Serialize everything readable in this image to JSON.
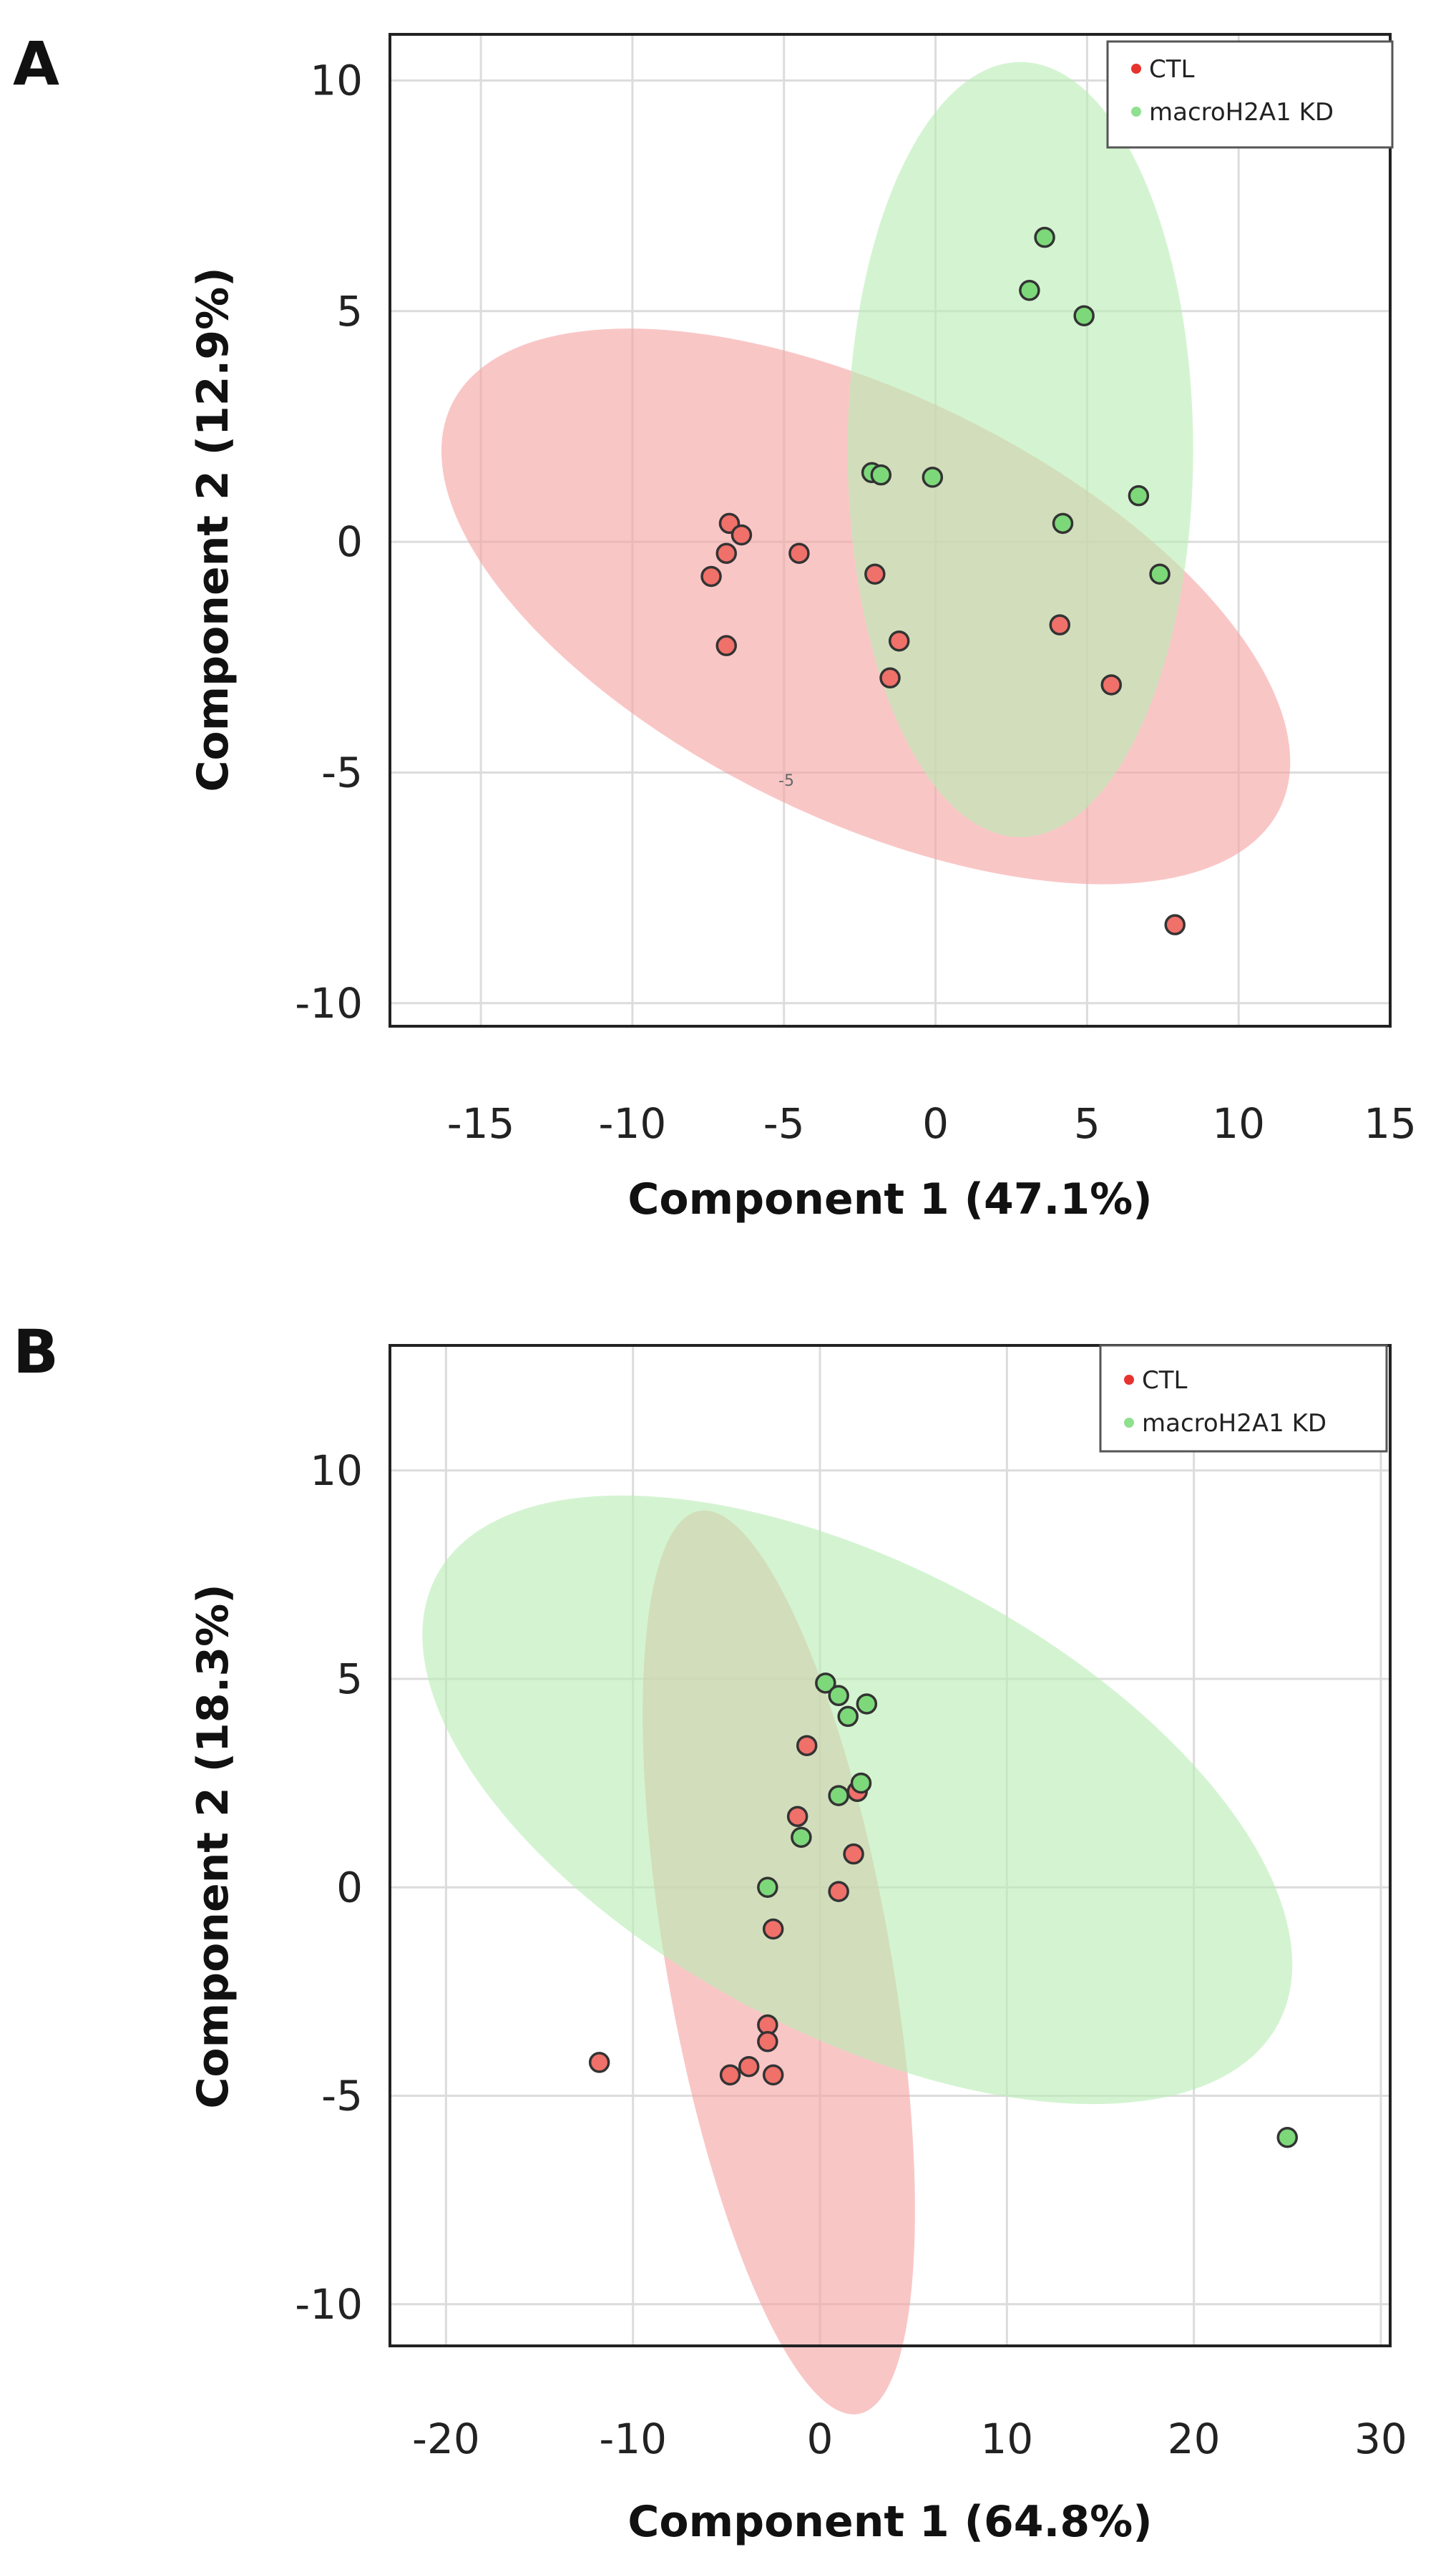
{
  "chart_data": [
    {
      "type": "scatter",
      "panel_label": "A",
      "xlabel": "Component 1 (47.1%)",
      "ylabel": "Component 2 (12.9%)",
      "xlim": [
        -18,
        15
      ],
      "ylim": [
        -10.5,
        11
      ],
      "xticks": [
        -15,
        -10,
        -5,
        0,
        5,
        10,
        15
      ],
      "yticks": [
        10,
        5,
        0,
        -5,
        -10
      ],
      "ytick_labels": [
        "10",
        "5",
        "0",
        "-5",
        "-10"
      ],
      "stray_mark": "-5",
      "legend": {
        "position": "top-right",
        "entries": [
          {
            "name": "CTL",
            "color": "#e8322e"
          },
          {
            "name": "macroH2A1 KD",
            "color": "#8fe08f"
          }
        ]
      },
      "series": [
        {
          "name": "CTL",
          "point_color": "#f0706a",
          "ellipse_color": "#f5a3a3",
          "points": [
            [
              -6.8,
              0.4
            ],
            [
              -6.4,
              0.15
            ],
            [
              -6.9,
              -0.25
            ],
            [
              -7.4,
              -0.75
            ],
            [
              -6.9,
              -2.25
            ],
            [
              -4.5,
              -0.25
            ],
            [
              -2.0,
              -0.7
            ],
            [
              -1.2,
              -2.15
            ],
            [
              -1.5,
              -2.95
            ],
            [
              4.1,
              -1.8
            ],
            [
              5.8,
              -3.1
            ],
            [
              7.9,
              -8.3
            ]
          ],
          "ellipse": {
            "cx": -2.3,
            "cy": -1.4,
            "rx": 15.2,
            "ry": 4.6,
            "angle_deg": 26
          }
        },
        {
          "name": "macroH2A1 KD",
          "point_color": "#7dd87a",
          "ellipse_color": "#b9edb4",
          "points": [
            [
              3.6,
              6.6
            ],
            [
              3.1,
              5.45
            ],
            [
              4.9,
              4.9
            ],
            [
              -2.1,
              1.5
            ],
            [
              -1.8,
              1.45
            ],
            [
              -0.1,
              1.4
            ],
            [
              6.7,
              1.0
            ],
            [
              4.2,
              0.4
            ],
            [
              7.4,
              -0.7
            ]
          ],
          "ellipse": {
            "cx": 2.8,
            "cy": 2.0,
            "rx": 5.7,
            "ry": 8.4,
            "angle_deg": 0
          }
        }
      ]
    },
    {
      "type": "scatter",
      "panel_label": "B",
      "xlabel": "Component 1 (64.8%)",
      "ylabel": "Component 2 (18.3%)",
      "xlim": [
        -23,
        30.5
      ],
      "ylim": [
        -11,
        13
      ],
      "xticks": [
        -20,
        -10,
        0,
        10,
        20,
        30
      ],
      "yticks": [
        10,
        5,
        0,
        -5,
        -10
      ],
      "ytick_labels": [
        "10",
        "5",
        "0",
        "-5",
        "-10"
      ],
      "legend": {
        "position": "top-right",
        "entries": [
          {
            "name": "CTL",
            "color": "#e8322e"
          },
          {
            "name": "macroH2A1 KD",
            "color": "#8fe08f"
          }
        ]
      },
      "series": [
        {
          "name": "CTL",
          "point_color": "#f0706a",
          "ellipse_color": "#f5a3a3",
          "points": [
            [
              -0.7,
              3.4
            ],
            [
              -1.2,
              1.7
            ],
            [
              2.0,
              2.3
            ],
            [
              1.8,
              0.8
            ],
            [
              1.0,
              -0.1
            ],
            [
              -2.5,
              -1.0
            ],
            [
              -2.8,
              -3.3
            ],
            [
              -2.8,
              -3.7
            ],
            [
              -3.8,
              -4.3
            ],
            [
              -4.8,
              -4.5
            ],
            [
              -2.5,
              -4.5
            ],
            [
              -11.8,
              -4.2
            ]
          ],
          "ellipse": {
            "cx": -2.2,
            "cy": -1.8,
            "rx": 6.0,
            "ry": 11.0,
            "angle_deg": -10
          }
        },
        {
          "name": "macroH2A1 KD",
          "point_color": "#7dd87a",
          "ellipse_color": "#b9edb4",
          "points": [
            [
              0.3,
              4.9
            ],
            [
              1.0,
              4.6
            ],
            [
              1.5,
              4.1
            ],
            [
              2.5,
              4.4
            ],
            [
              2.2,
              2.5
            ],
            [
              1.0,
              2.2
            ],
            [
              -1.0,
              1.2
            ],
            [
              -2.8,
              0.0
            ],
            [
              25.0,
              -6.0
            ]
          ],
          "ellipse": {
            "cx": 2.0,
            "cy": 2.1,
            "rx": 25.5,
            "ry": 5.6,
            "angle_deg": 28
          }
        }
      ]
    }
  ]
}
